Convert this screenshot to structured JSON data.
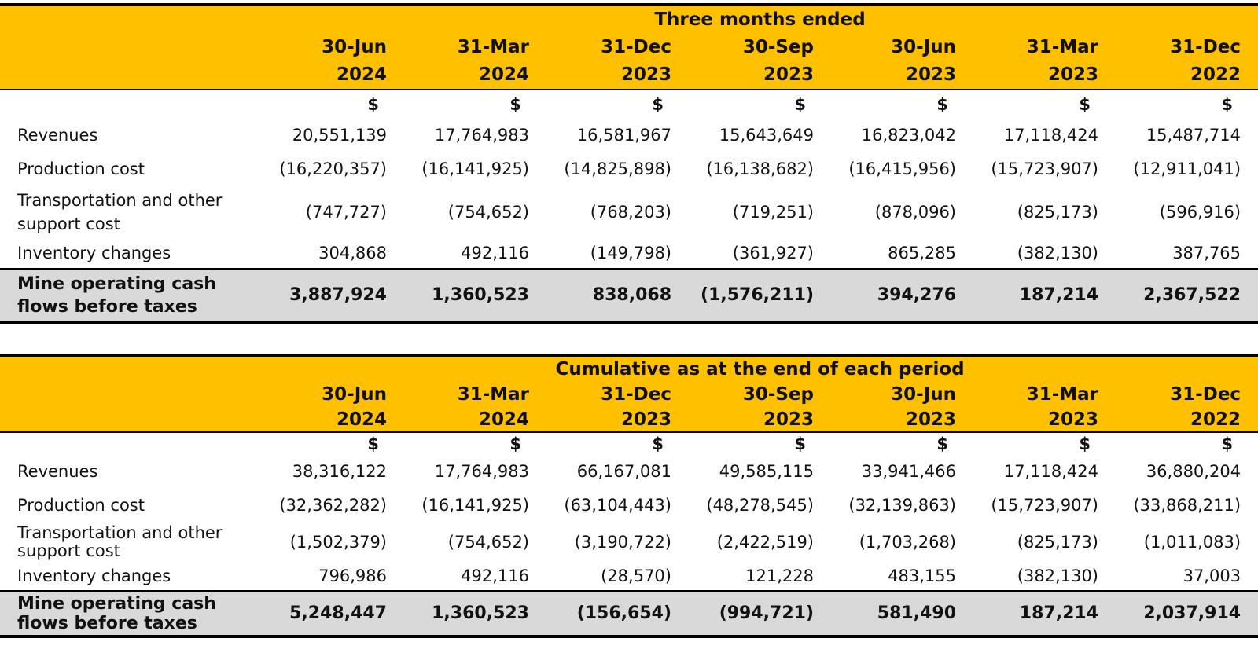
{
  "periods": [
    {
      "day": "30-Jun",
      "year": "2024"
    },
    {
      "day": "31-Mar",
      "year": "2024"
    },
    {
      "day": "31-Dec",
      "year": "2023"
    },
    {
      "day": "30-Sep",
      "year": "2023"
    },
    {
      "day": "30-Jun",
      "year": "2023"
    },
    {
      "day": "31-Mar",
      "year": "2023"
    },
    {
      "day": "31-Dec",
      "year": "2022"
    }
  ],
  "currency": "$",
  "labels": {
    "revenues": "Revenues",
    "production_cost": "Production cost",
    "transport_line1": "Transportation and other",
    "transport_line2": "support cost",
    "inventory": "Inventory changes",
    "total_line1": "Mine operating cash",
    "total_line2": "flows before taxes"
  },
  "three_months": {
    "title": "Three months ended",
    "revenues": [
      "20,551,139",
      "17,764,983",
      "16,581,967",
      "15,643,649",
      "16,823,042",
      "17,118,424",
      "15,487,714"
    ],
    "production_cost": [
      "(16,220,357)",
      "(16,141,925)",
      "(14,825,898)",
      "(16,138,682)",
      "(16,415,956)",
      "(15,723,907)",
      "(12,911,041)"
    ],
    "transport": [
      "(747,727)",
      "(754,652)",
      "(768,203)",
      "(719,251)",
      "(878,096)",
      "(825,173)",
      "(596,916)"
    ],
    "inventory": [
      "304,868",
      "492,116",
      "(149,798)",
      "(361,927)",
      "865,285",
      "(382,130)",
      "387,765"
    ],
    "total": [
      "3,887,924",
      "1,360,523",
      "838,068",
      "(1,576,211)",
      "394,276",
      "187,214",
      "2,367,522"
    ]
  },
  "cumulative": {
    "title": "Cumulative as at the end of each period",
    "revenues": [
      "38,316,122",
      "17,764,983",
      "66,167,081",
      "49,585,115",
      "33,941,466",
      "17,118,424",
      "36,880,204"
    ],
    "production_cost": [
      "(32,362,282)",
      "(16,141,925)",
      "(63,104,443)",
      "(48,278,545)",
      "(32,139,863)",
      "(15,723,907)",
      "(33,868,211)"
    ],
    "transport": [
      "(1,502,379)",
      "(754,652)",
      "(3,190,722)",
      "(2,422,519)",
      "(1,703,268)",
      "(825,173)",
      "(1,011,083)"
    ],
    "inventory": [
      "796,986",
      "492,116",
      "(28,570)",
      "121,228",
      "483,155",
      "(382,130)",
      "37,003"
    ],
    "total": [
      "5,248,447",
      "1,360,523",
      "(156,654)",
      "(994,721)",
      "581,490",
      "187,214",
      "2,037,914"
    ]
  }
}
